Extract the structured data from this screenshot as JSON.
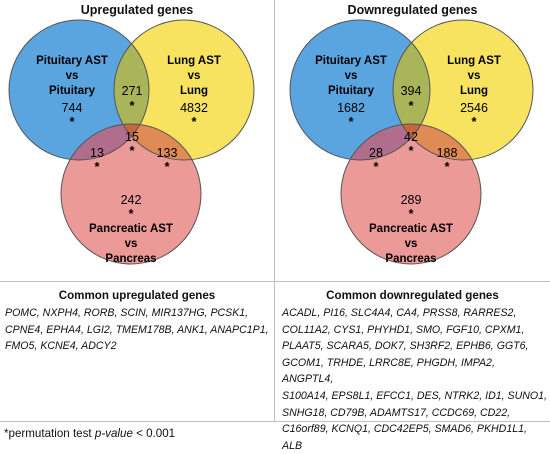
{
  "up": {
    "title": "Upregulated genes",
    "set_a": [
      "Pituitary AST",
      "vs",
      "Pituitary"
    ],
    "set_b": [
      "Lung AST",
      "vs",
      "Lung"
    ],
    "set_c": [
      "Pancreatic AST",
      "vs",
      "Pancreas"
    ],
    "counts": {
      "a_only": "744",
      "b_only": "4832",
      "c_only": "242",
      "ab": "271",
      "ac": "13",
      "bc": "133",
      "abc": "15"
    },
    "star": "*"
  },
  "down": {
    "title": "Downregulated genes",
    "set_a": [
      "Pituitary AST",
      "vs",
      "Pituitary"
    ],
    "set_b": [
      "Lung AST",
      "vs",
      "Lung"
    ],
    "set_c": [
      "Pancreatic AST",
      "vs",
      "Pancreas"
    ],
    "counts": {
      "a_only": "1682",
      "b_only": "2546",
      "c_only": "289",
      "ab": "394",
      "ac": "28",
      "bc": "188",
      "abc": "42"
    },
    "star": "*"
  },
  "common_up": {
    "title": "Common upregulated genes",
    "lines": [
      "POMC, NXPH4, RORB, SCIN, MIR137HG, PCSK1,",
      "CPNE4, EPHA4, LGI2, TMEM178B, ANK1, ANAPC1P1,",
      "FMO5, KCNE4, ADCY2"
    ]
  },
  "common_down": {
    "title": "Common downregulated genes",
    "lines": [
      "ACADL, PI16, SLC4A4, CA4, PRSS8, RARRES2,",
      "COL11A2, CYS1, PHYHD1, SMO, FGF10, CPXM1,",
      "PLAAT5, SCARA5, DOK7, SH3RF2, EPHB6, GGT6,",
      "GCOM1, TRHDE, LRRC8E, PHGDH, IMPA2, ANGPTL4,",
      "S100A14, EPS8L1, EFCC1, DES, NTRK2, ID1, SUNO1,",
      "SNHG18, CD79B, ADAMTS17, CCDC69, CD22,",
      "C16orf89, KCNQ1, CDC42EP5, SMAD6, PKHD1L1, ALB"
    ]
  },
  "footnote": {
    "prefix": "*permutation test ",
    "italic": "p-value",
    "suffix": " < 0.001"
  },
  "colors": {
    "blue": "#5aa5e0",
    "yellow": "#f7e35f",
    "pink": "#ec9a98",
    "blue_yellow": "#aab55a",
    "blue_pink": "#b06e8c",
    "yellow_pink": "#e08a55",
    "all": "#c8663a"
  }
}
